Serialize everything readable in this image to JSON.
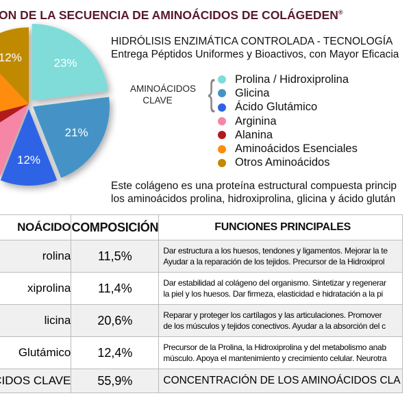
{
  "title": "ON DE LA SECUENCIA DE AMINOÁCIDOS DE COLÁGEDEN",
  "title_mark": "®",
  "subtitle_1": "HIDRÓLISIS ENZIMÁTICA CONTROLADA  - TECNOLOGÍA",
  "subtitle_2": "Entrega Péptidos Uniformes y Bioactivos, con Mayor Eficacia",
  "key_label_1": "AMINOÁCIDOS",
  "key_label_2": "CLAVE",
  "legend": [
    {
      "label": "Prolina / Hidroxiprolina",
      "color": "#7fdcd8"
    },
    {
      "label": "Glicina",
      "color": "#4593c6"
    },
    {
      "label": "Ácido Glutámico",
      "color": "#2f63e6"
    },
    {
      "label": "Arginina",
      "color": "#f586a6"
    },
    {
      "label": "Alanina",
      "color": "#b01a1f"
    },
    {
      "label": "Aminoácidos Esenciales",
      "color": "#ff8c0a"
    },
    {
      "label": "Otros Aminoácidos",
      "color": "#c08a00"
    }
  ],
  "description_1": "Este colágeno es una proteína estructural compuesta princip",
  "description_2": "los aminoácidos prolina, hidroxiprolina, glicina y ácido glután",
  "chart_data": {
    "type": "pie",
    "slices": [
      {
        "name": "Prolina / Hidroxiprolina",
        "value": 23,
        "label": "23%",
        "color": "#7fdcd8",
        "exploded": true
      },
      {
        "name": "Glicina",
        "value": 21,
        "label": "21%",
        "color": "#4593c6",
        "exploded": true
      },
      {
        "name": "Ácido Glutámico",
        "value": 12,
        "label": "12%",
        "color": "#2f63e6",
        "exploded": true
      },
      {
        "name": "Arginina",
        "value": 10,
        "label": "",
        "color": "#f586a6",
        "exploded": false
      },
      {
        "name": "Alanina",
        "value": 5,
        "label": "",
        "color": "#b01a1f",
        "exploded": false
      },
      {
        "name": "Aminoácidos Esenciales",
        "value": 17,
        "label": "",
        "color": "#ff8c0a",
        "exploded": false
      },
      {
        "name": "Otros Aminoácidos",
        "value": 12,
        "label": "12%",
        "color": "#c08a00",
        "exploded": false
      }
    ]
  },
  "table": {
    "headers": [
      "NOÁCIDO",
      "COMPOSICIÓN",
      "FUNCIONES PRINCIPALES"
    ],
    "rows": [
      {
        "name": "rolina",
        "comp": "11,5%",
        "f1": "Dar estructura a los huesos, tendones y ligamentos. Mejorar la te",
        "f2": "Ayudar a la reparación de los tejidos. Precursor de la Hidroxiprol"
      },
      {
        "name": "xiprolina",
        "comp": "11,4%",
        "f1": "Dar estabilidad al colágeno del organismo. Sintetizar y regenerar",
        "f2": "la piel y los huesos. Dar firmeza, elasticidad e hidratación a la pi"
      },
      {
        "name": "licina",
        "comp": "20,6%",
        "f1": "Reparar y proteger los cartílagos y las articulaciones. Promover",
        "f2": "de los músculos y tejidos conectivos. Ayudar a la absorción del c"
      },
      {
        "name": "Glutámico",
        "comp": "12,4%",
        "f1": "Precursor de la Prolina, la Hidroxiprolina y del metabolismo anab",
        "f2": "músculo. Apoya el mantenimiento y crecimiento celular. Neurotra"
      }
    ],
    "total": {
      "name": "CIDOS CLAVE",
      "comp": "55,9%",
      "f": "CONCENTRACIÓN DE LOS AMINOÁCIDOS CLA"
    }
  }
}
